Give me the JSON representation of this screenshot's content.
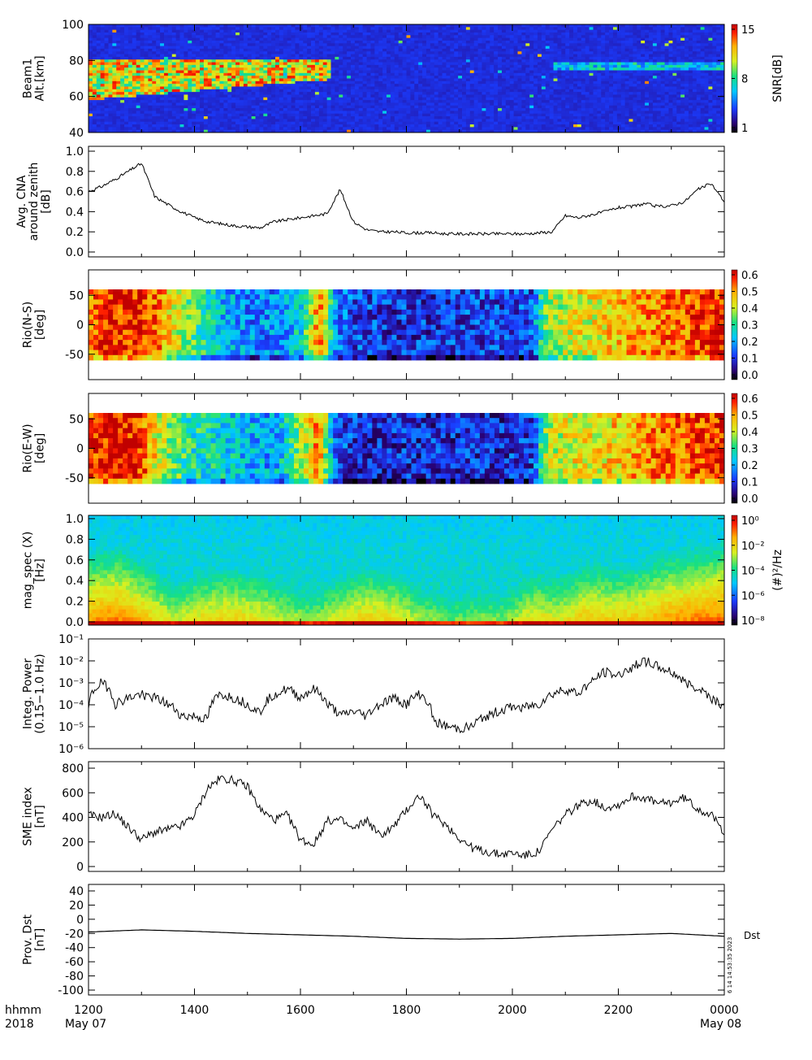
{
  "time_axis": {
    "label_left_top": "hhmm",
    "label_left_bottom": "2018",
    "ticks": [
      "1200",
      "1400",
      "1600",
      "1800",
      "2000",
      "2200",
      "0000"
    ],
    "date_start": "May 07",
    "date_end": "May 08"
  },
  "stamp": "6 14 14:53:35 2023",
  "chart_data": [
    {
      "type": "heatmap",
      "ylabel": "Beam1\nAlt.[km]",
      "ylim": [
        40,
        100
      ],
      "yticks": [
        "40",
        "60",
        "80",
        "100"
      ],
      "colorbar": {
        "label": "SNR[dB]",
        "ticks": [
          "1",
          "8",
          "15"
        ],
        "scale": "rainbow"
      },
      "features": [
        {
          "t_start": "1200",
          "t_end": "1640",
          "alt_low": 60,
          "alt_high": 80,
          "description": "high SNR band"
        },
        {
          "t_start": "2050",
          "t_end": "2355",
          "alt_low": 75,
          "alt_high": 78,
          "description": "weak SNR layer"
        }
      ]
    },
    {
      "type": "line",
      "ylabel": "Avg. CNA\naround zenith\n[dB]",
      "ylim": [
        0.0,
        1.0
      ],
      "yticks": [
        "0.0",
        "0.2",
        "0.4",
        "0.6",
        "0.8",
        "1.0"
      ],
      "x": [
        0,
        0.25,
        0.5,
        0.75,
        1.0,
        1.25,
        1.5,
        1.75,
        2.0,
        2.25,
        2.5,
        2.75,
        3.0,
        3.25,
        3.5,
        3.75,
        4.0,
        4.25,
        4.5,
        4.75,
        5.0,
        5.25,
        5.5,
        5.75,
        6.0,
        6.25,
        6.5,
        6.75,
        7.0,
        7.25,
        7.5,
        7.75,
        8.0,
        8.25,
        8.5,
        8.75,
        9.0,
        9.25,
        9.5,
        9.75,
        10.0,
        10.25,
        10.5,
        10.75,
        11.0,
        11.25,
        11.5,
        11.75,
        12.0
      ],
      "values": [
        0.6,
        0.65,
        0.72,
        0.8,
        0.88,
        0.55,
        0.47,
        0.4,
        0.34,
        0.3,
        0.28,
        0.26,
        0.25,
        0.24,
        0.3,
        0.32,
        0.34,
        0.36,
        0.38,
        0.62,
        0.3,
        0.22,
        0.2,
        0.2,
        0.19,
        0.19,
        0.19,
        0.18,
        0.18,
        0.18,
        0.18,
        0.18,
        0.18,
        0.18,
        0.19,
        0.2,
        0.36,
        0.34,
        0.37,
        0.4,
        0.44,
        0.45,
        0.48,
        0.45,
        0.46,
        0.5,
        0.62,
        0.68,
        0.5
      ]
    },
    {
      "type": "heatmap",
      "ylabel": "Rio(N-S)\n[deg]",
      "ylim": [
        -80,
        80
      ],
      "yticks": [
        "-50",
        "0",
        "50"
      ],
      "colorbar": {
        "ticks": [
          "0.0",
          "0.1",
          "0.2",
          "0.3",
          "0.4",
          "0.5",
          "0.6"
        ],
        "scale": "rainbow"
      },
      "column_means": [
        0.55,
        0.62,
        0.6,
        0.62,
        0.55,
        0.45,
        0.38,
        0.3,
        0.25,
        0.22,
        0.2,
        0.2,
        0.22,
        0.3,
        0.55,
        0.2,
        0.15,
        0.14,
        0.13,
        0.13,
        0.13,
        0.13,
        0.13,
        0.14,
        0.14,
        0.14,
        0.14,
        0.15,
        0.4,
        0.42,
        0.45,
        0.45,
        0.48,
        0.5,
        0.52,
        0.55,
        0.55,
        0.58,
        0.6,
        0.62
      ]
    },
    {
      "type": "heatmap",
      "ylabel": "Rio(E-W)\n[deg]",
      "ylim": [
        -80,
        80
      ],
      "yticks": [
        "-50",
        "0",
        "50"
      ],
      "colorbar": {
        "ticks": [
          "0.0",
          "0.1",
          "0.2",
          "0.3",
          "0.4",
          "0.5",
          "0.6"
        ],
        "scale": "rainbow"
      },
      "column_means": [
        0.6,
        0.62,
        0.62,
        0.6,
        0.45,
        0.38,
        0.32,
        0.3,
        0.28,
        0.26,
        0.24,
        0.22,
        0.28,
        0.4,
        0.55,
        0.15,
        0.13,
        0.12,
        0.12,
        0.12,
        0.12,
        0.12,
        0.12,
        0.12,
        0.12,
        0.12,
        0.13,
        0.13,
        0.42,
        0.44,
        0.46,
        0.46,
        0.48,
        0.5,
        0.52,
        0.55,
        0.56,
        0.58,
        0.6,
        0.62
      ]
    },
    {
      "type": "heatmap",
      "ylabel": "mag_spec (X)\n[Hz]",
      "ylim": [
        0.0,
        1.0
      ],
      "yticks": [
        "0.0",
        "0.2",
        "0.4",
        "0.6",
        "0.8",
        "1.0"
      ],
      "colorbar": {
        "label": "(#)²/Hz",
        "ticks": [
          "10⁻⁸",
          "10⁻⁶",
          "10⁻⁴",
          "10⁻²",
          "10⁰"
        ],
        "scale": "rainbow"
      }
    },
    {
      "type": "line",
      "ylabel": "Integ. Power\n(0.15−1.0 Hz)",
      "scale": "log",
      "ylim": [
        1e-06,
        0.1
      ],
      "yticks": [
        "10⁻⁶",
        "10⁻⁵",
        "10⁻⁴",
        "10⁻³",
        "10⁻²",
        "10⁻¹"
      ],
      "x": [
        0,
        0.25,
        0.5,
        0.75,
        1.0,
        1.25,
        1.5,
        1.75,
        2.0,
        2.25,
        2.5,
        2.75,
        3.0,
        3.25,
        3.5,
        3.75,
        4.0,
        4.25,
        4.5,
        4.75,
        5.0,
        5.25,
        5.5,
        5.75,
        6.0,
        6.25,
        6.5,
        6.75,
        7.0,
        7.25,
        7.5,
        7.75,
        8.0,
        8.25,
        8.5,
        8.75,
        9.0,
        9.25,
        9.5,
        9.75,
        10.0,
        10.25,
        10.5,
        10.75,
        11.0,
        11.25,
        11.5,
        11.75,
        12.0
      ],
      "values": [
        6e-05,
        0.001,
        0.0001,
        0.0002,
        0.0003,
        0.0002,
        0.0001,
        3e-05,
        3e-05,
        2e-05,
        0.0003,
        0.0002,
        0.0001,
        4e-05,
        0.0003,
        0.0005,
        0.0002,
        0.0005,
        0.0001,
        3e-05,
        5e-05,
        3e-05,
        0.0001,
        0.0002,
        0.0001,
        0.0003,
        2e-05,
        1e-05,
        8e-06,
        1e-05,
        3e-05,
        5e-05,
        8e-05,
        8e-05,
        0.0001,
        0.0003,
        0.0005,
        0.0003,
        0.001,
        0.003,
        0.002,
        0.005,
        0.01,
        0.005,
        0.003,
        0.001,
        0.0006,
        0.0002,
        8e-05
      ]
    },
    {
      "type": "line",
      "ylabel": "SME index\n[nT]",
      "ylim": [
        0,
        800
      ],
      "yticks": [
        "0",
        "200",
        "400",
        "600",
        "800"
      ],
      "x": [
        0,
        0.25,
        0.5,
        0.75,
        1.0,
        1.25,
        1.5,
        1.75,
        2.0,
        2.25,
        2.5,
        2.75,
        3.0,
        3.25,
        3.5,
        3.75,
        4.0,
        4.25,
        4.5,
        4.75,
        5.0,
        5.25,
        5.5,
        5.75,
        6.0,
        6.25,
        6.5,
        6.75,
        7.0,
        7.25,
        7.5,
        7.75,
        8.0,
        8.25,
        8.5,
        8.75,
        9.0,
        9.25,
        9.5,
        9.75,
        10.0,
        10.25,
        10.5,
        10.75,
        11.0,
        11.25,
        11.5,
        11.75,
        12.0
      ],
      "values": [
        420,
        400,
        430,
        320,
        220,
        280,
        300,
        330,
        420,
        640,
        720,
        700,
        650,
        460,
        380,
        420,
        220,
        180,
        370,
        380,
        300,
        380,
        250,
        320,
        460,
        580,
        420,
        340,
        230,
        150,
        120,
        100,
        110,
        90,
        120,
        300,
        420,
        500,
        540,
        480,
        500,
        570,
        560,
        510,
        520,
        560,
        470,
        420,
        280
      ]
    },
    {
      "type": "line",
      "ylabel": "Prov. Dst\n[nT]",
      "ylim": [
        -100,
        40
      ],
      "yticks": [
        "-100",
        "-80",
        "-60",
        "-40",
        "-20",
        "0",
        "20",
        "40"
      ],
      "legend": "Dst",
      "x": [
        0,
        1,
        2,
        3,
        4,
        5,
        6,
        7,
        8,
        9,
        10,
        11,
        12
      ],
      "values": [
        -18,
        -15,
        -17,
        -20,
        -22,
        -24,
        -27,
        -28,
        -27,
        -24,
        -22,
        -20,
        -24
      ]
    }
  ]
}
